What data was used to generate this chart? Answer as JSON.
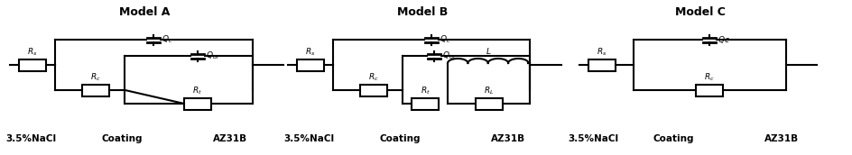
{
  "title_A": "Model A",
  "title_B": "Model B",
  "title_C": "Model C",
  "label_A": [
    "3.5%NaCl",
    "Coating",
    "AZ31B"
  ],
  "label_B": [
    "3.5%NaCl",
    "Coating",
    "AZ31B"
  ],
  "label_C": [
    "3.5%NaCl",
    "Coating",
    "AZ31B"
  ],
  "lw": 1.5,
  "bg_color": "#ffffff",
  "line_color": "#000000",
  "title_fontsize": 9,
  "label_fontsize": 7.5,
  "component_fontsize": 6.5
}
